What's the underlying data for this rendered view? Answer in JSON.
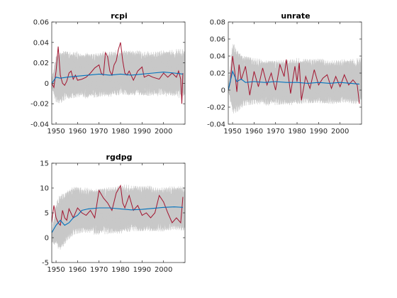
{
  "figure": {
    "background": "#ffffff",
    "colors": {
      "draws": "#c8c8c8",
      "actual": "#a2142f",
      "mean": "#0072bd",
      "axes": "#262626"
    }
  },
  "chart_data": [
    {
      "type": "line",
      "title": "rcpi",
      "xlabel": "",
      "ylabel": "",
      "xlim": [
        1948,
        2010
      ],
      "ylim": [
        -0.04,
        0.06
      ],
      "xticks": [
        "1950",
        "1960",
        "1970",
        "1980",
        "1990",
        "2000"
      ],
      "yticks": [
        "-0.04",
        "-0.02",
        "0",
        "0.02",
        "0.04",
        "0.06"
      ],
      "grid": false,
      "series": [
        {
          "role": "draws",
          "color": "#c8c8c8",
          "lower": {
            "x": [
              1948,
              1950,
              1952,
              1955,
              1960,
              1970,
              1980,
              1990,
              2000,
              2009
            ],
            "y": [
              -0.004,
              -0.02,
              -0.022,
              -0.018,
              -0.016,
              -0.014,
              -0.013,
              -0.013,
              -0.014,
              -0.015
            ]
          },
          "upper": {
            "x": [
              1948,
              1950,
              1952,
              1955,
              1960,
              1970,
              1980,
              1990,
              2000,
              2009
            ],
            "y": [
              0.004,
              0.03,
              0.033,
              0.033,
              0.032,
              0.032,
              0.033,
              0.032,
              0.033,
              0.034
            ]
          }
        },
        {
          "role": "actual",
          "color": "#a2142f",
          "x": [
            1948,
            1949,
            1950,
            1951,
            1952,
            1953,
            1954,
            1955,
            1956,
            1957,
            1958,
            1959,
            1960,
            1962,
            1964,
            1966,
            1968,
            1970,
            1971,
            1972,
            1973,
            1974,
            1975,
            1976,
            1977,
            1978,
            1979,
            1980,
            1981,
            1982,
            1983,
            1984,
            1986,
            1988,
            1990,
            1991,
            1993,
            1995,
            1998,
            2000,
            2002,
            2004,
            2006,
            2007,
            2008,
            2008.5,
            2009
          ],
          "y": [
            0.0,
            -0.004,
            0.012,
            0.036,
            0.008,
            0.0,
            -0.002,
            0.002,
            0.01,
            0.012,
            0.004,
            0.008,
            0.003,
            0.004,
            0.006,
            0.01,
            0.015,
            0.018,
            0.01,
            0.008,
            0.03,
            0.026,
            0.012,
            0.008,
            0.018,
            0.022,
            0.033,
            0.04,
            0.022,
            0.01,
            0.008,
            0.012,
            0.003,
            0.012,
            0.016,
            0.006,
            0.008,
            0.006,
            0.004,
            0.01,
            0.006,
            0.01,
            0.006,
            0.012,
            0.004,
            -0.02,
            0.01
          ]
        },
        {
          "role": "mean",
          "color": "#0072bd",
          "x": [
            1948,
            1950,
            1952,
            1955,
            1960,
            1965,
            1970,
            1975,
            1980,
            1985,
            1990,
            1995,
            2000,
            2005,
            2009
          ],
          "y": [
            0.0,
            0.006,
            0.005,
            0.006,
            0.007,
            0.008,
            0.009,
            0.008,
            0.009,
            0.008,
            0.009,
            0.01,
            0.011,
            0.01,
            0.009
          ]
        }
      ]
    },
    {
      "type": "line",
      "title": "unrate",
      "xlabel": "",
      "ylabel": "",
      "xlim": [
        1948,
        2010
      ],
      "ylim": [
        -0.04,
        0.08
      ],
      "xticks": [
        "1950",
        "1960",
        "1970",
        "1980",
        "1990",
        "2000"
      ],
      "yticks": [
        "-0.04",
        "-0.02",
        "0",
        "0.02",
        "0.04",
        "0.06",
        "0.08"
      ],
      "grid": false,
      "series": [
        {
          "role": "draws",
          "color": "#c8c8c8",
          "lower": {
            "x": [
              1948,
              1950,
              1952,
              1955,
              1960,
              1970,
              1980,
              1990,
              2000,
              2009
            ],
            "y": [
              -0.002,
              -0.03,
              -0.028,
              -0.022,
              -0.02,
              -0.018,
              -0.018,
              -0.017,
              -0.018,
              -0.019
            ]
          },
          "upper": {
            "x": [
              1948,
              1950,
              1952,
              1955,
              1960,
              1970,
              1980,
              1990,
              2000,
              2009
            ],
            "y": [
              0.004,
              0.06,
              0.052,
              0.042,
              0.04,
              0.038,
              0.038,
              0.037,
              0.037,
              0.038
            ]
          }
        },
        {
          "role": "actual",
          "color": "#a2142f",
          "x": [
            1948,
            1949,
            1950,
            1951,
            1952,
            1953,
            1954,
            1956,
            1958,
            1960,
            1962,
            1964,
            1966,
            1968,
            1970,
            1972,
            1974,
            1975,
            1977,
            1979,
            1980,
            1981,
            1982,
            1984,
            1986,
            1988,
            1990,
            1992,
            1994,
            1996,
            1998,
            2000,
            2002,
            2004,
            2006,
            2008,
            2009
          ],
          "y": [
            0.0,
            0.01,
            0.04,
            0.022,
            -0.002,
            0.03,
            0.012,
            0.028,
            -0.006,
            0.022,
            0.004,
            0.026,
            0.006,
            0.02,
            0.0,
            0.03,
            0.016,
            0.036,
            -0.004,
            0.028,
            0.01,
            0.032,
            -0.012,
            0.016,
            0.002,
            0.024,
            0.006,
            0.014,
            0.018,
            0.002,
            0.016,
            0.004,
            0.018,
            0.006,
            0.012,
            0.006,
            -0.016
          ]
        },
        {
          "role": "mean",
          "color": "#0072bd",
          "x": [
            1948,
            1950,
            1952,
            1954,
            1956,
            1960,
            1965,
            1970,
            1975,
            1980,
            1985,
            1990,
            1995,
            2000,
            2005,
            2009
          ],
          "y": [
            0.0,
            0.022,
            0.01,
            0.013,
            0.009,
            0.01,
            0.009,
            0.01,
            0.009,
            0.009,
            0.008,
            0.009,
            0.008,
            0.009,
            0.008,
            0.007
          ]
        }
      ]
    },
    {
      "type": "line",
      "title": "rgdpg",
      "xlabel": "",
      "ylabel": "",
      "xlim": [
        1948,
        2010
      ],
      "ylim": [
        -5,
        15
      ],
      "xticks": [
        "1950",
        "1960",
        "1970",
        "1980",
        "1990",
        "2000"
      ],
      "yticks": [
        "-5",
        "0",
        "5",
        "10",
        "15"
      ],
      "grid": false,
      "series": [
        {
          "role": "draws",
          "color": "#c8c8c8",
          "lower": {
            "x": [
              1948,
              1950,
              1952,
              1955,
              1958,
              1962,
              1970,
              1980,
              1990,
              2000,
              2009
            ],
            "y": [
              -1,
              -2.5,
              -3,
              -1,
              0,
              0.5,
              0.5,
              0.8,
              1,
              1,
              1
            ]
          },
          "upper": {
            "x": [
              1948,
              1950,
              1952,
              1955,
              1958,
              1962,
              1970,
              1980,
              1990,
              2000,
              2009
            ],
            "y": [
              1,
              7,
              9,
              10,
              10.5,
              10.5,
              10.5,
              10.8,
              10.5,
              10.5,
              10.5
            ]
          }
        },
        {
          "role": "actual",
          "color": "#a2142f",
          "x": [
            1948,
            1949,
            1950,
            1951,
            1952,
            1953,
            1954,
            1955,
            1956,
            1958,
            1960,
            1962,
            1964,
            1966,
            1968,
            1970,
            1972,
            1974,
            1976,
            1978,
            1980,
            1981,
            1982,
            1984,
            1986,
            1988,
            1990,
            1992,
            1994,
            1996,
            1998,
            2000,
            2002,
            2004,
            2006,
            2008,
            2009
          ],
          "y": [
            3,
            6.5,
            4,
            3,
            2.5,
            5.5,
            4,
            3.5,
            5.8,
            4,
            6,
            5,
            4.5,
            5.5,
            4,
            9.5,
            8,
            7,
            5.5,
            9,
            10.5,
            7,
            6,
            8.5,
            5.5,
            6.5,
            4.5,
            5,
            4,
            5,
            8.5,
            7.2,
            5,
            3,
            4,
            3,
            8.2
          ]
        },
        {
          "role": "mean",
          "color": "#0072bd",
          "x": [
            1948,
            1950,
            1952,
            1954,
            1956,
            1958,
            1960,
            1962,
            1965,
            1970,
            1975,
            1980,
            1985,
            1990,
            1995,
            2000,
            2005,
            2009
          ],
          "y": [
            1,
            2.5,
            3.5,
            2.5,
            3,
            4,
            4.5,
            5.5,
            5.8,
            6,
            6,
            5.8,
            5.6,
            5.7,
            5.9,
            6.1,
            6.2,
            6.1
          ]
        }
      ]
    }
  ]
}
